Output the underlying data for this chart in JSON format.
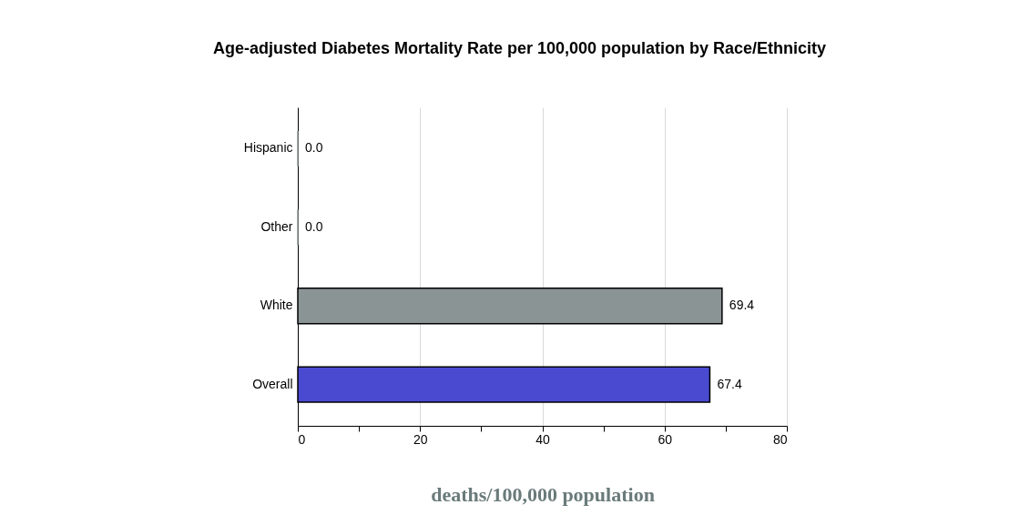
{
  "chart_data": {
    "type": "bar",
    "orientation": "horizontal",
    "title": "Age-adjusted Diabetes Mortality Rate per 100,000 population by Race/Ethnicity",
    "xlabel": "deaths/100,000 population",
    "categories": [
      "Hispanic",
      "Other",
      "White",
      "Overall"
    ],
    "values": [
      0,
      0,
      69.4,
      67.4
    ],
    "colors": [
      "#8a9494",
      "#8a9494",
      "#8a9494",
      "#4a4ad0"
    ],
    "value_labels": [
      "0.0",
      "0.0",
      "69.4",
      "67.4"
    ],
    "xlim": [
      0,
      80
    ],
    "xticks": [
      0,
      {
        "value": 10,
        "label": null
      },
      20,
      {
        "value": 30,
        "label": null
      },
      40,
      {
        "value": 50,
        "label": null
      },
      60,
      {
        "value": 70,
        "label": null
      },
      80
    ],
    "grid": "x"
  }
}
